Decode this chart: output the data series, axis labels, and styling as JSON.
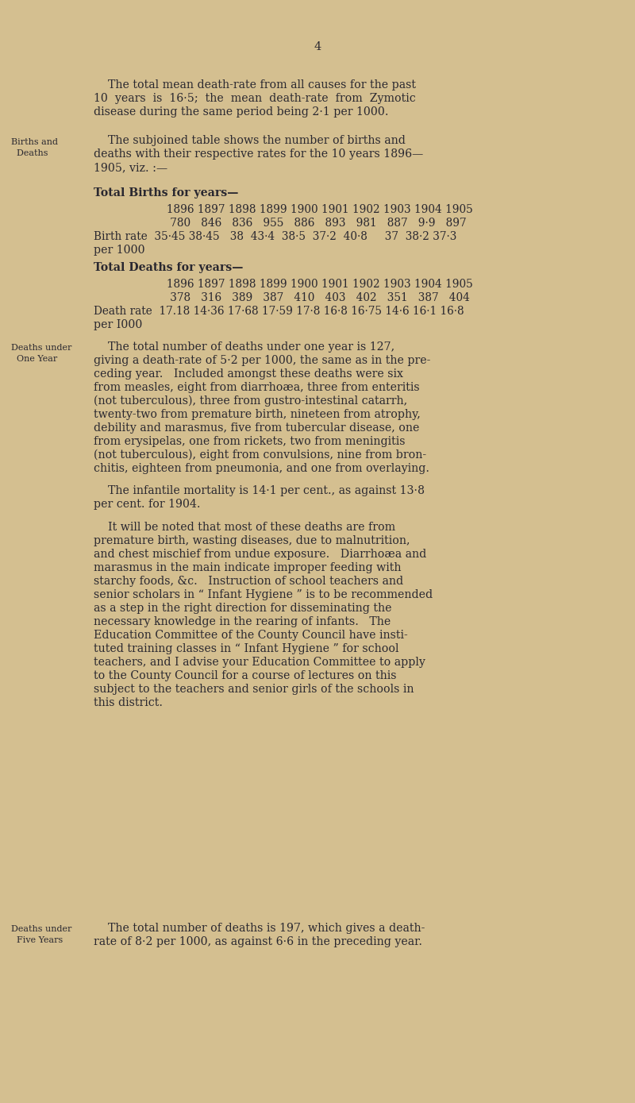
{
  "bg_color": "#d4bf90",
  "text_color": "#2a2830",
  "page_number": "4",
  "intro_text_1": "    The total mean death-rate from all causes for the past",
  "intro_text_2": "10  years  is  16·5;  the  mean  death-rate  from  Zymotic",
  "intro_text_3": "disease during the same period being 2·1 per 1000.",
  "side_label_1a": "Births and",
  "side_label_1b": "  Deaths",
  "births_intro_1": "    The subjoined table shows the number of births and",
  "births_intro_2": "deaths with their respective rates for the 10 years 1896—",
  "births_intro_3": "1905, viz. :—",
  "total_births_label": "Total Births for years—",
  "births_years": "     1896 1897 1898 1899 1900 1901 1902 1903 1904 1905",
  "births_values": "      780   846   836   955   886   893   981   887   9·9   897",
  "birth_rate_row": "Birth rate  35·45 38·45   38  43·4  38·5  37·2  40·8     37  38·2 37·3",
  "per_1000_b": "per 1000",
  "total_deaths_label": "Total Deaths for years—",
  "deaths_years": "     1896 1897 1898 1899 1900 1901 1902 1903 1904 1905",
  "deaths_values": "      378   316   389   387   410   403   402   351   387   404",
  "death_rate_row": "Death rate  17.18 14·36 17·68 17·59 17·8 16·8 16·75 14·6 16·1 16·8",
  "per_1000_d": "per I000",
  "side_label_2a": "Deaths under",
  "side_label_2b": "  One Year",
  "deaths_one_1": "    The total number of deaths under one year is 127,",
  "deaths_one_2": "giving a death-rate of 5·2 per 1000, the same as in the pre-",
  "deaths_one_3": "ceding year.   Included amongst these deaths were six",
  "deaths_one_4": "from measles, eight from diarrhoæa, three from enteritis",
  "deaths_one_5": "(not tuberculous), three from gustro-intestinal catarrh,",
  "deaths_one_6": "twenty-two from premature birth, nineteen from atrophy,",
  "deaths_one_7": "debility and marasmus, five from tubercular disease, one",
  "deaths_one_8": "from erysipelas, one from rickets, two from meningitis",
  "deaths_one_9": "(not tuberculous), eight from convulsions, nine from bron-",
  "deaths_one_10": "chitis, eighteen from pneumonia, and one from overlaying.",
  "infant_1": "    The infantile mortality is 14·1 per cent., as against 13·8",
  "infant_2": "per cent. for 1904.",
  "itwill_1": "    It will be noted that most of these deaths are from",
  "itwill_2": "premature birth, wasting diseases, due to malnutrition,",
  "itwill_3": "and chest mischief from undue exposure.   Diarrhoæa and",
  "itwill_4": "marasmus in the main indicate improper feeding with",
  "itwill_5": "starchy foods, &c.   Instruction of school teachers and",
  "itwill_6": "senior scholars in “ Infant Hygiene ” is to be recommended",
  "itwill_7": "as a step in the right direction for disseminating the",
  "itwill_8": "necessary knowledge in the rearing of infants.   The",
  "itwill_9": "Education Committee of the County Council have insti-",
  "itwill_10": "tuted training classes in “ Infant Hygiene ” for school",
  "itwill_11": "teachers, and I advise your Education Committee to apply",
  "itwill_12": "to the County Council for a course of lectures on this",
  "itwill_13": "subject to the teachers and senior girls of the schools in",
  "itwill_14": "this district.",
  "side_label_3a": "Deaths under",
  "side_label_3b": "  Five Years",
  "dfive_1": "    The total number of deaths is 197, which gives a death-",
  "dfive_2": "rate of 8·2 per 1000, as against 6·6 in the preceding year."
}
